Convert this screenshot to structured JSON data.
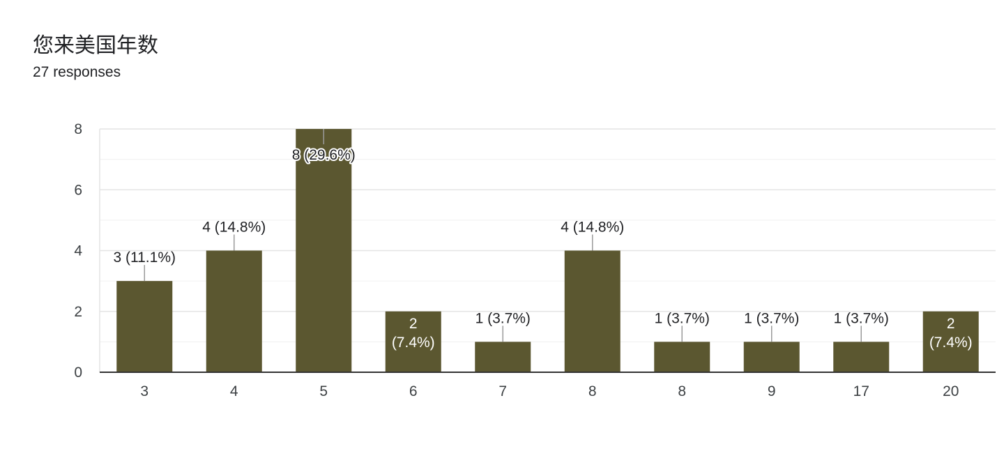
{
  "header": {
    "title": "您来美国年数",
    "subtitle": "27 responses"
  },
  "chart_data": {
    "type": "bar",
    "title": "您来美国年数",
    "subtitle": "27 responses",
    "xlabel": "",
    "ylabel": "",
    "categories": [
      "3",
      "4",
      "5",
      "6",
      "7",
      "8",
      "8",
      "9",
      "17",
      "20"
    ],
    "values": [
      3,
      4,
      8,
      2,
      1,
      4,
      1,
      1,
      1,
      2
    ],
    "labels": [
      "3 (11.1%)",
      "4 (14.8%)",
      "8 (29.6%)",
      "2 (7.4%)",
      "1 (3.7%)",
      "4 (14.8%)",
      "1 (3.7%)",
      "1 (3.7%)",
      "1 (3.7%)",
      "2 (7.4%)"
    ],
    "ylim": [
      0,
      8
    ],
    "yticks": [
      0,
      2,
      4,
      6,
      8
    ],
    "grid": true,
    "legend": "none",
    "colors": {
      "bar": "#5b5730",
      "grid": "#e8e8e8",
      "axis": "#333333",
      "label": "#202124",
      "inside_label": "#ffffff"
    }
  }
}
